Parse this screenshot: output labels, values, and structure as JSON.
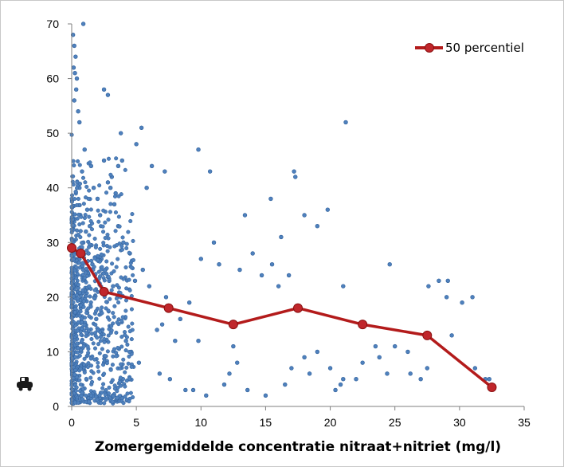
{
  "chart_data": {
    "type": "scatter",
    "title": "",
    "xlabel": "Zomergemiddelde concentratie nitraat+nitriet (mg/l)",
    "ylabel": "",
    "xlim": [
      0,
      35
    ],
    "ylim": [
      0,
      70
    ],
    "xticks": [
      0,
      5,
      10,
      15,
      20,
      25,
      30,
      35
    ],
    "yticks": [
      0,
      10,
      20,
      30,
      40,
      50,
      60,
      70
    ],
    "grid": false,
    "legend_position": "top-right",
    "colors": {
      "scatter": "#4f81bd",
      "scatter_edge": "#2f5f9a",
      "percentile": "#c0262b",
      "percentile_line": "#b31b1b"
    },
    "series": [
      {
        "name": "50 percentiel",
        "kind": "line",
        "x": [
          0,
          0.7,
          2.5,
          7.5,
          12.5,
          17.5,
          22.5,
          27.5,
          32.5
        ],
        "y": [
          29,
          28,
          21,
          18,
          15,
          18,
          15,
          13,
          3.5
        ]
      },
      {
        "name": "",
        "kind": "scatter",
        "x": [
          0.9,
          0.1,
          0.2,
          0.3,
          0.15,
          0.25,
          0.4,
          0.35,
          0.2,
          0.5,
          0.6,
          2.5,
          2.8,
          3.8,
          3.9,
          5.4,
          2.5,
          3.6,
          3.1,
          2.8,
          3.0,
          3.4,
          5.8,
          6.2,
          5.0,
          7.2,
          9.8,
          10.7,
          13.4,
          15.4,
          16.2,
          17.2,
          17.3,
          18.0,
          19.0,
          19.8,
          21.2,
          21.0,
          24.6,
          27.6,
          29.1,
          29.0,
          29.4,
          31.0,
          32.0,
          32.3,
          27.5,
          26.0,
          25.0,
          22.5,
          20.0,
          21.0,
          20.8,
          19.0,
          18.0,
          16.8,
          16.0,
          15.5,
          14.7,
          14.0,
          13.0,
          12.5,
          12.8,
          11.0,
          11.4,
          10.0,
          9.8,
          9.1,
          8.4,
          8.0,
          7.3,
          7.0,
          6.6,
          6.0,
          5.5,
          4.9,
          4.5,
          4.0,
          3.6,
          3.3,
          1.0,
          1.5,
          1.7,
          2.0,
          2.2,
          0.8,
          1.2,
          1.4,
          0.6,
          0.9,
          1.1,
          1.3,
          1.6,
          1.8,
          2.3,
          2.6,
          2.9,
          3.2,
          0.7,
          1.9,
          2.1,
          4.2,
          4.6,
          5.2,
          6.8,
          7.6,
          8.8,
          9.4,
          10.4,
          11.8,
          12.2,
          13.6,
          15.0,
          16.5,
          18.4,
          17.0,
          20.4,
          22.0,
          23.5,
          23.8,
          24.4,
          26.2,
          27.0,
          31.2,
          30.2,
          28.4
        ],
        "y": [
          70,
          68,
          66,
          64,
          62,
          61,
          60,
          58,
          56,
          54,
          52,
          58,
          57,
          50,
          45,
          51,
          45,
          44,
          42,
          41,
          40,
          39,
          40,
          44,
          48,
          43,
          47,
          43,
          35,
          38,
          31,
          43,
          42,
          35,
          33,
          36,
          52,
          22,
          26,
          22,
          23,
          20,
          13,
          20,
          5,
          5,
          7,
          10,
          11,
          8,
          7,
          5,
          4,
          10,
          9,
          24,
          22,
          26,
          24,
          28,
          25,
          11,
          8,
          30,
          26,
          27,
          12,
          19,
          16,
          12,
          20,
          15,
          14,
          22,
          25,
          23,
          28,
          30,
          33,
          37,
          47,
          44,
          40,
          38,
          35,
          43,
          36,
          33,
          40,
          30,
          32,
          28,
          26,
          24,
          27,
          25,
          23,
          22,
          18,
          16,
          14,
          12,
          10,
          8,
          6,
          5,
          3,
          3,
          2,
          4,
          6,
          3,
          2,
          4,
          6,
          7,
          3,
          5,
          11,
          9,
          6,
          6,
          5,
          7,
          19,
          23
        ]
      }
    ]
  }
}
